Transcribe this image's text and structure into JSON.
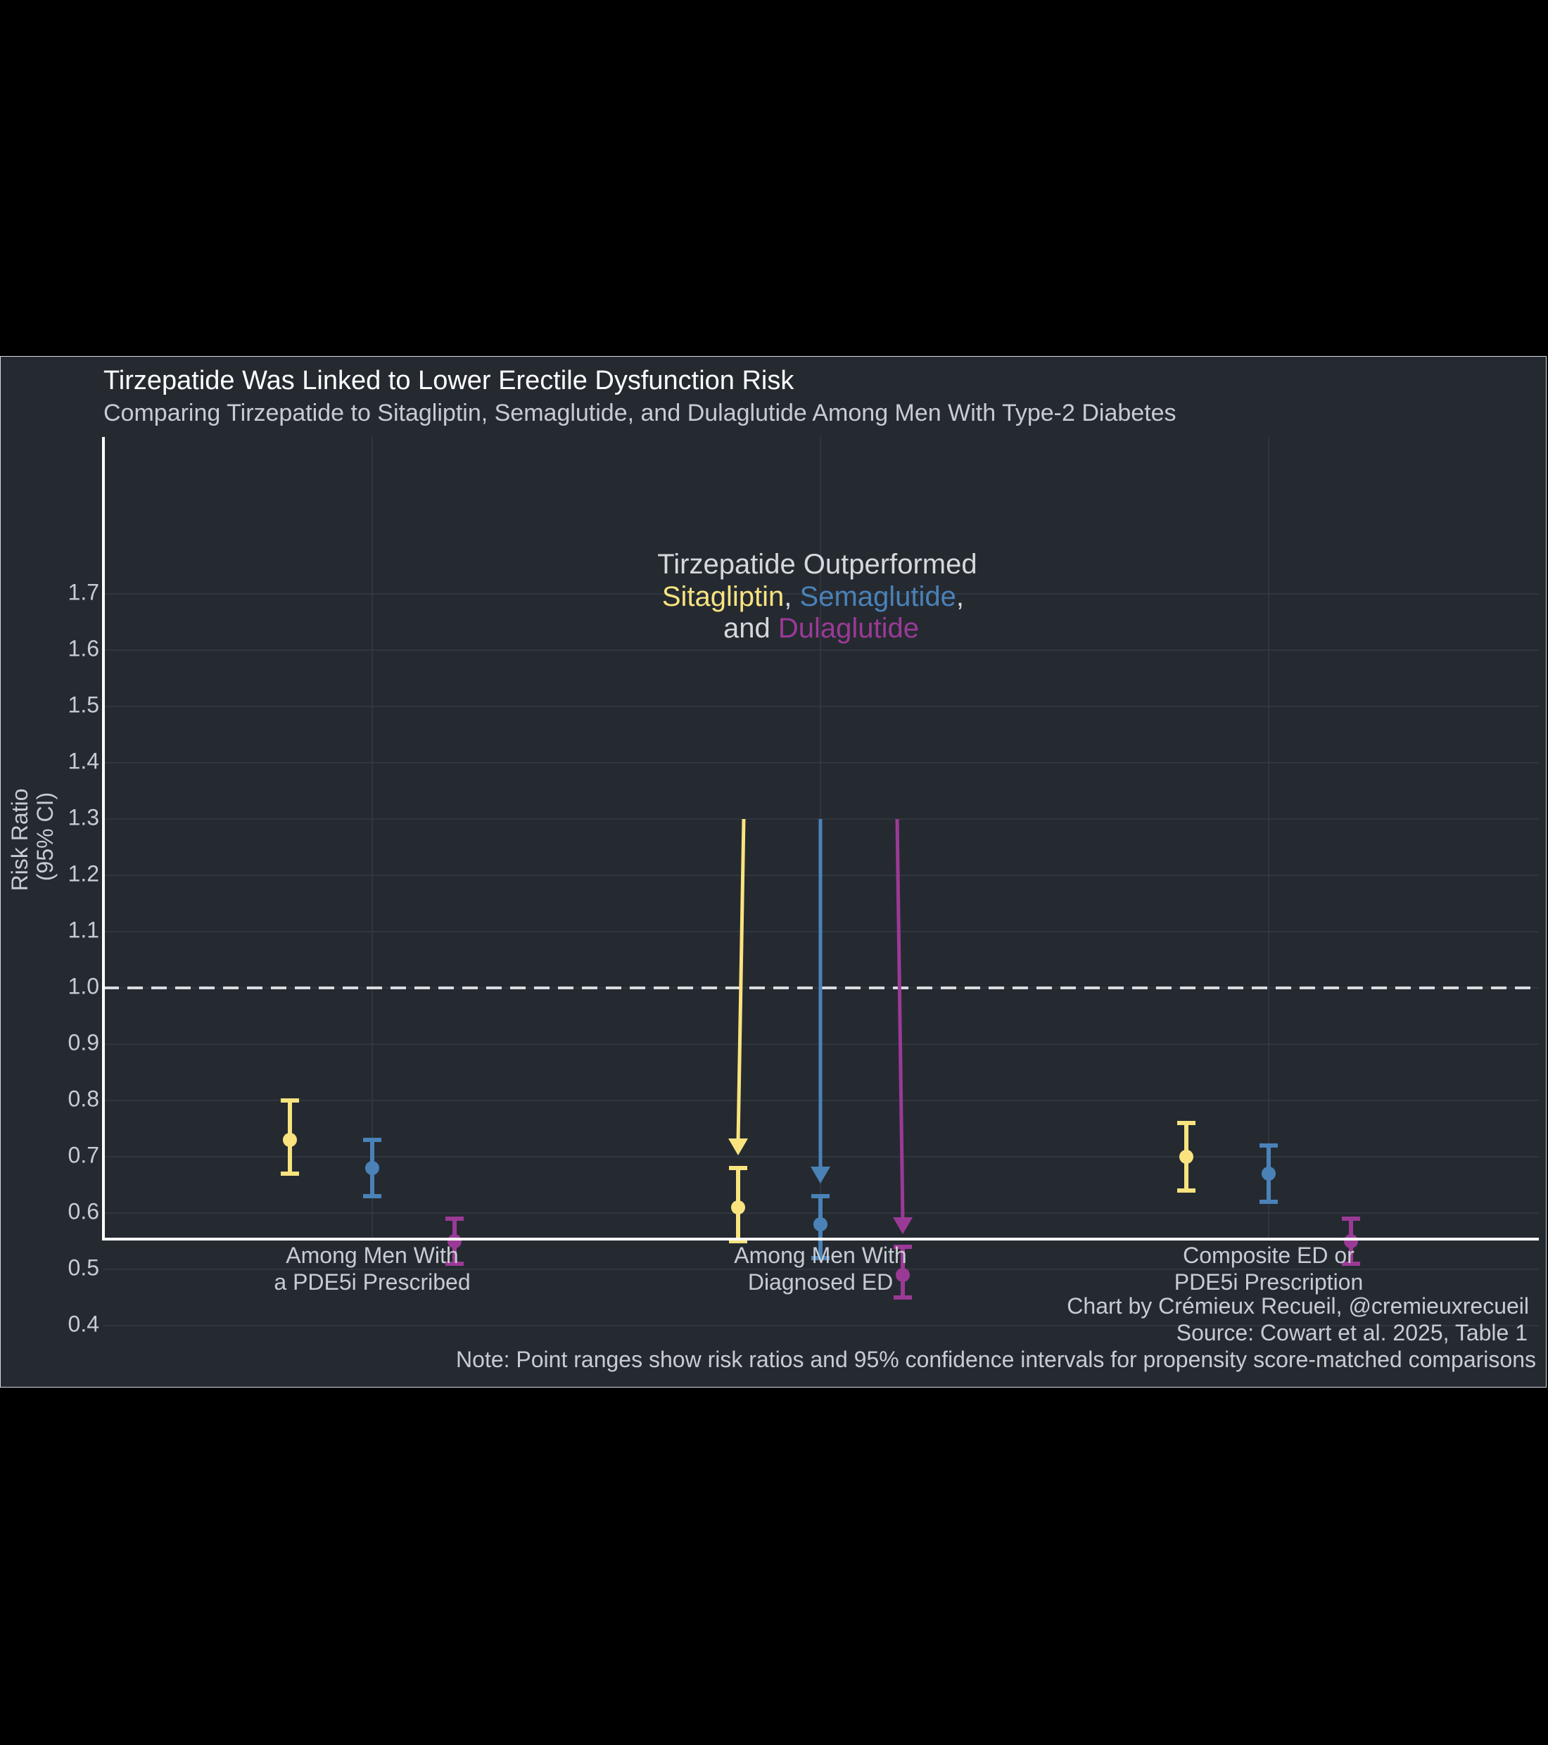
{
  "chart_data": {
    "type": "scatter",
    "variant": "point-range",
    "title": "Tirzepatide Was Linked to Lower Erectile Dysfunction Risk",
    "subtitle": "Comparing Tirzepatide to Sitagliptin, Semaglutide, and Dulaglutide Among Men With Type-2 Diabetes",
    "ylabel_lines": [
      "Risk Ratio",
      "(95% CI)"
    ],
    "xlabel": "",
    "ylim": [
      0.3,
      1.73
    ],
    "yticks": [
      0.4,
      0.5,
      0.6,
      0.7,
      0.8,
      0.9,
      1.0,
      1.1,
      1.2,
      1.3,
      1.4,
      1.5,
      1.6,
      1.7
    ],
    "ytick_labels": [
      "0.4",
      "0.5",
      "0.6",
      "0.7",
      "0.8",
      "0.9",
      "1.0",
      "1.1",
      "1.2",
      "1.3",
      "1.4",
      "1.5",
      "1.6",
      "1.7"
    ],
    "reference_line": 1.0,
    "grid": true,
    "categories": [
      [
        "Among Men With",
        "a PDE5i Prescribed"
      ],
      [
        "Among Men With",
        "Diagnosed ED"
      ],
      [
        "Composite ED or",
        "PDE5i Prescription"
      ]
    ],
    "series": [
      {
        "key": "sitagliptin",
        "color": "#f8e37f",
        "points": [
          {
            "rr": 0.73,
            "lo": 0.67,
            "hi": 0.8
          },
          {
            "rr": 0.61,
            "lo": 0.55,
            "hi": 0.68
          },
          {
            "rr": 0.7,
            "lo": 0.64,
            "hi": 0.76
          }
        ]
      },
      {
        "key": "semaglutide",
        "color": "#4a82b8",
        "points": [
          {
            "rr": 0.68,
            "lo": 0.63,
            "hi": 0.73
          },
          {
            "rr": 0.58,
            "lo": 0.52,
            "hi": 0.63
          },
          {
            "rr": 0.67,
            "lo": 0.62,
            "hi": 0.72
          }
        ]
      },
      {
        "key": "dulaglutide",
        "color": "#9b3a96",
        "points": [
          {
            "rr": 0.55,
            "lo": 0.51,
            "hi": 0.59
          },
          {
            "rr": 0.49,
            "lo": 0.45,
            "hi": 0.54
          },
          {
            "rr": 0.55,
            "lo": 0.51,
            "hi": 0.59
          }
        ]
      }
    ],
    "annotation": {
      "line1": "Tirzepatide Outperformed",
      "line2": [
        {
          "text": "Sitagliptin",
          "color": "#f8e37f"
        },
        {
          "text": ", ",
          "color": "#d5d9de"
        },
        {
          "text": "Semaglutide",
          "color": "#4a82b8"
        },
        {
          "text": ",",
          "color": "#d5d9de"
        }
      ],
      "line3": [
        {
          "text": "and ",
          "color": "#d5d9de"
        },
        {
          "text": "Dulaglutide",
          "color": "#9b3a96"
        }
      ]
    },
    "caption": [
      "Chart by Crémieux Recueil, @cremieuxrecueil",
      "Source: Cowart et al. 2025, Table 1",
      "Note: Point ranges show risk ratios and 95% confidence intervals for propensity score-matched comparisons"
    ]
  }
}
